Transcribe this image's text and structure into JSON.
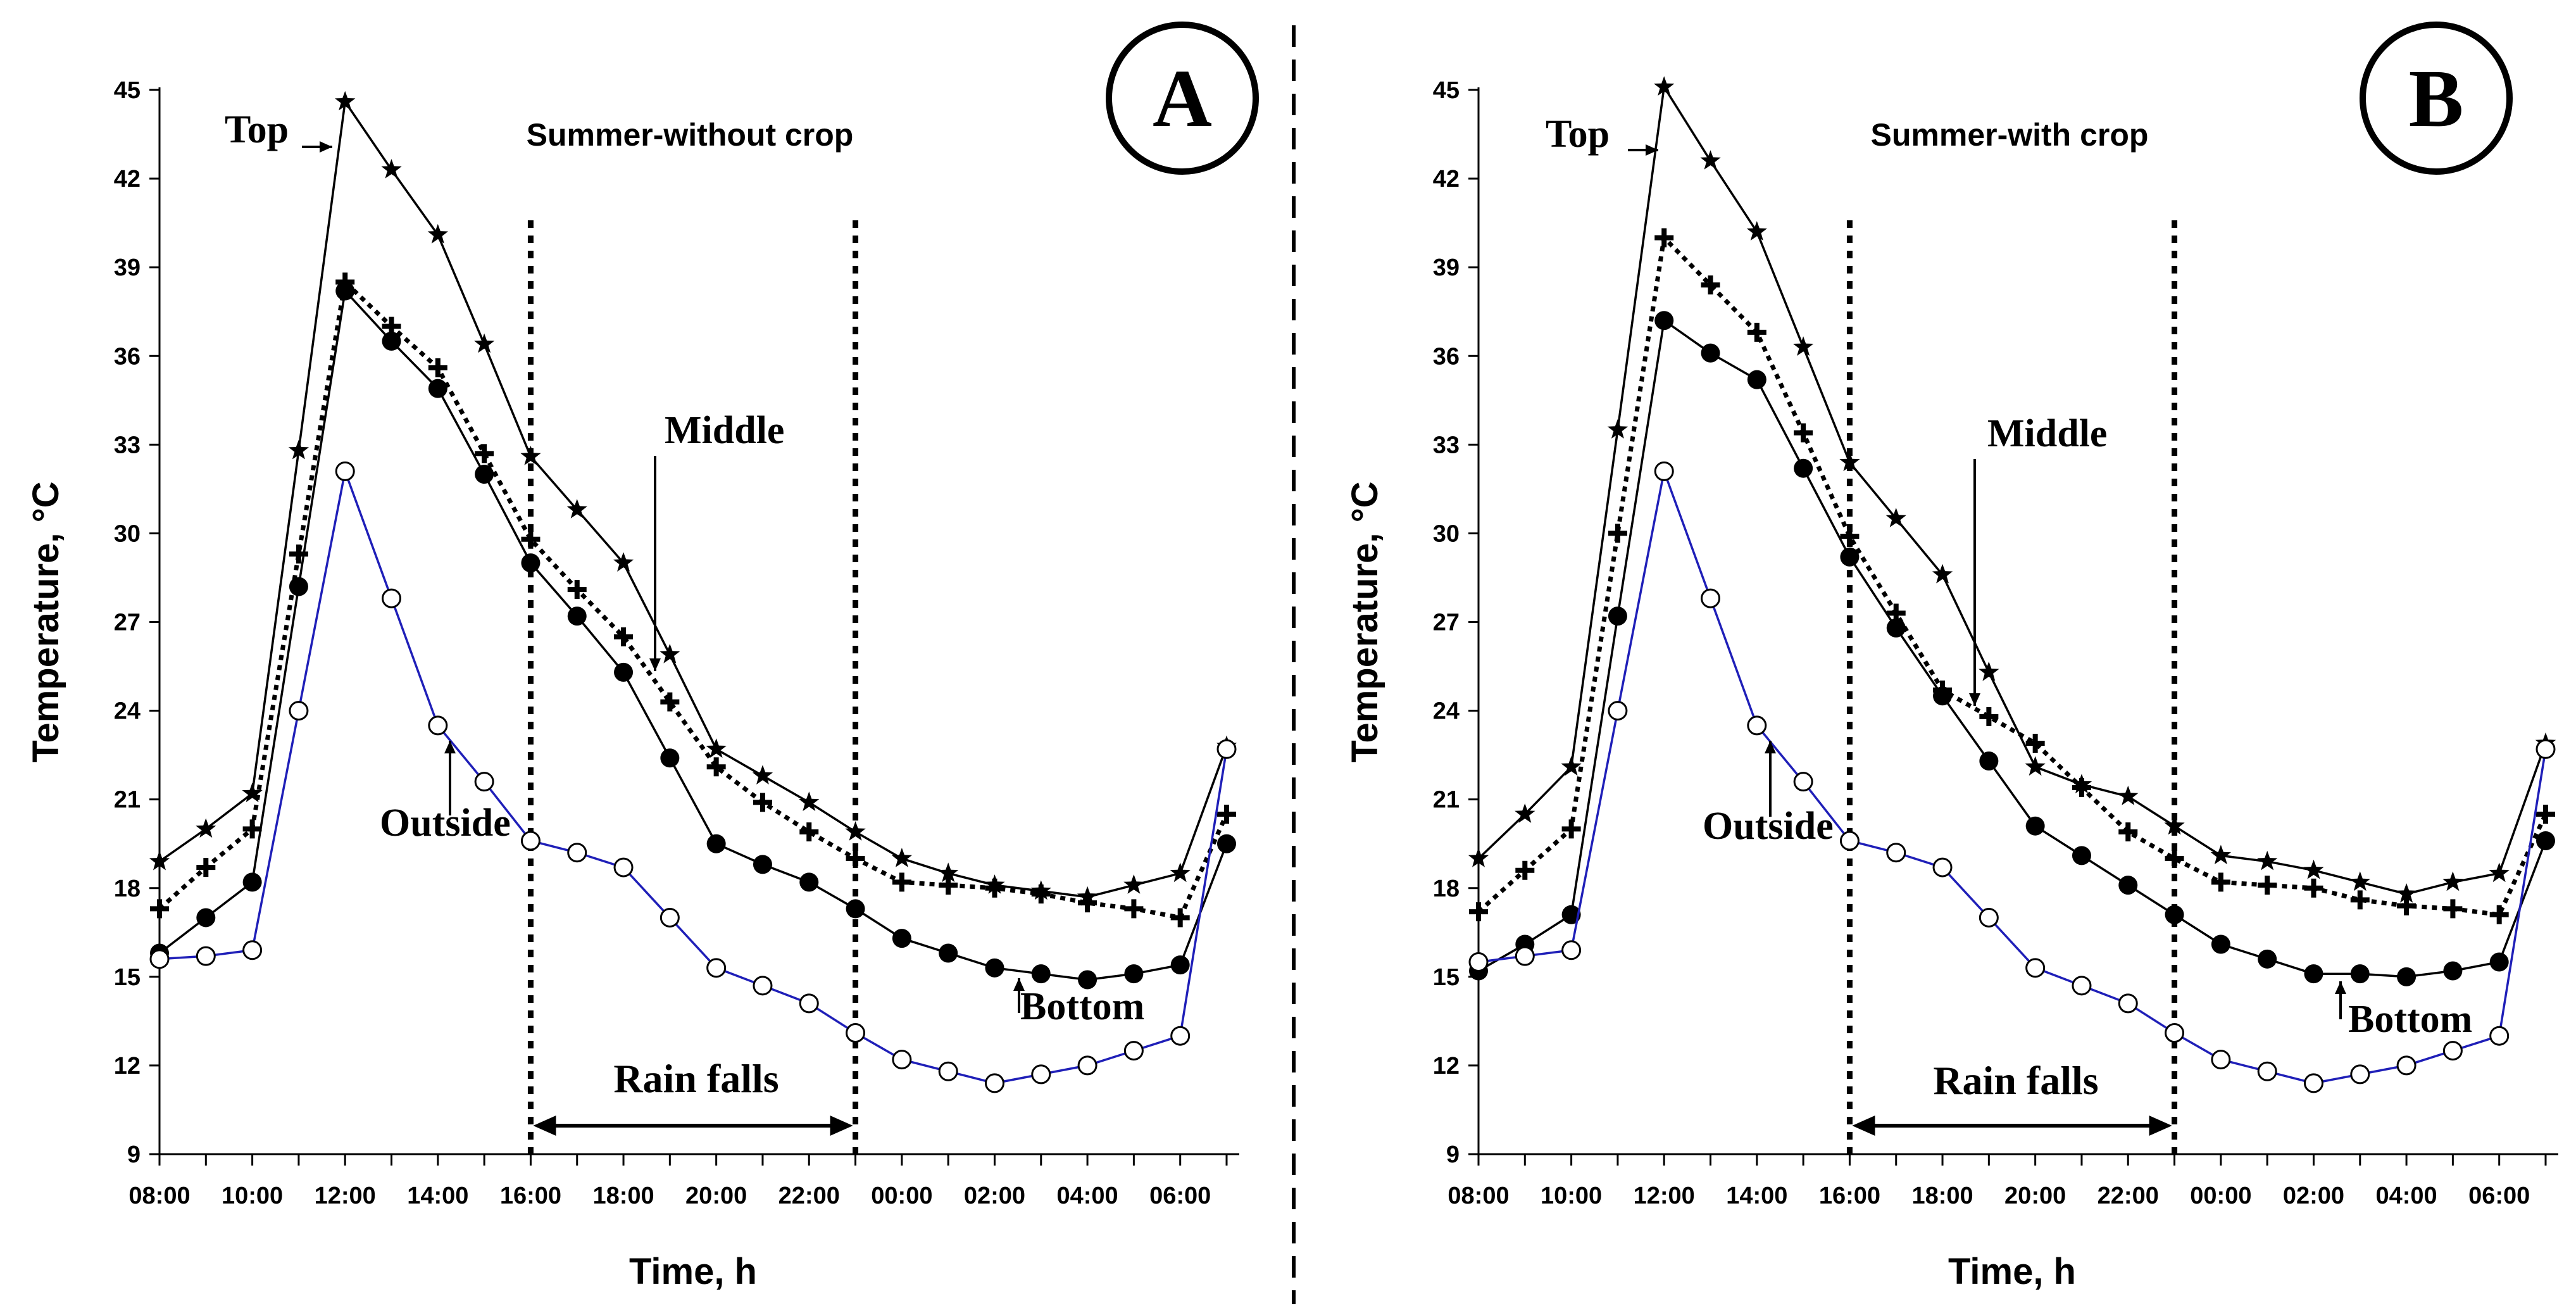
{
  "chart_data": [
    {
      "type": "line",
      "panel_label": "A",
      "title": "Summer-without crop",
      "xlabel": "Time, h",
      "ylabel": "Temperature, °C",
      "ylim": [
        9,
        45
      ],
      "yticks": [
        9,
        12,
        15,
        18,
        21,
        24,
        27,
        30,
        33,
        36,
        39,
        42,
        45
      ],
      "x_hours": [
        0,
        1,
        2,
        3,
        4,
        5,
        6,
        7,
        8,
        9,
        10,
        11,
        12,
        13,
        14,
        15,
        16,
        17,
        18,
        19,
        20,
        21,
        22,
        23
      ],
      "xtick_labels": [
        "08:00",
        "10:00",
        "12:00",
        "14:00",
        "16:00",
        "18:00",
        "20:00",
        "22:00",
        "00:00",
        "02:00",
        "04:00",
        "06:00"
      ],
      "rain_period": {
        "label": "Rain falls",
        "start": "16:00",
        "end": "23:00"
      },
      "series": [
        {
          "name": "Top",
          "color": "#000000",
          "marker": "star",
          "dash": false,
          "values": [
            18.9,
            20.0,
            21.2,
            32.8,
            44.6,
            42.3,
            40.1,
            36.4,
            32.6,
            30.8,
            29.0,
            25.9,
            22.7,
            21.8,
            20.9,
            19.9,
            19.0,
            18.5,
            18.1,
            17.9,
            17.7,
            18.1,
            18.5,
            22.8
          ]
        },
        {
          "name": "Middle",
          "color": "#000000",
          "marker": "plus",
          "dash": true,
          "values": [
            17.3,
            18.7,
            20.0,
            29.3,
            38.5,
            37.0,
            35.6,
            32.7,
            29.8,
            28.1,
            26.5,
            24.3,
            22.1,
            20.9,
            19.9,
            19.0,
            18.2,
            18.1,
            18.0,
            17.8,
            17.5,
            17.3,
            17.0,
            20.5
          ]
        },
        {
          "name": "Bottom",
          "color": "#000000",
          "marker": "filled-circle",
          "dash": false,
          "values": [
            15.8,
            17.0,
            18.2,
            28.2,
            38.2,
            36.5,
            34.9,
            32.0,
            29.0,
            27.2,
            25.3,
            22.4,
            19.5,
            18.8,
            18.2,
            17.3,
            16.3,
            15.8,
            15.3,
            15.1,
            14.9,
            15.1,
            15.4,
            19.5
          ]
        },
        {
          "name": "Outside",
          "color": "#1f1fb8",
          "marker": "open-circle",
          "dash": false,
          "values": [
            15.6,
            15.7,
            15.9,
            24.0,
            32.1,
            27.8,
            23.5,
            21.6,
            19.6,
            19.2,
            18.7,
            17.0,
            15.3,
            14.7,
            14.1,
            13.1,
            12.2,
            11.8,
            11.4,
            11.7,
            12.0,
            12.5,
            13.0,
            22.7
          ]
        }
      ]
    },
    {
      "type": "line",
      "panel_label": "B",
      "title": "Summer-with crop",
      "xlabel": "Time, h",
      "ylabel": "Temperature, °C",
      "ylim": [
        9,
        45
      ],
      "yticks": [
        9,
        12,
        15,
        18,
        21,
        24,
        27,
        30,
        33,
        36,
        39,
        42,
        45
      ],
      "x_hours": [
        0,
        1,
        2,
        3,
        4,
        5,
        6,
        7,
        8,
        9,
        10,
        11,
        12,
        13,
        14,
        15,
        16,
        17,
        18,
        19,
        20,
        21,
        22,
        23
      ],
      "xtick_labels": [
        "08:00",
        "10:00",
        "12:00",
        "14:00",
        "16:00",
        "18:00",
        "20:00",
        "22:00",
        "00:00",
        "02:00",
        "04:00",
        "06:00"
      ],
      "rain_period": {
        "label": "Rain falls",
        "start": "16:00",
        "end": "23:00"
      },
      "series": [
        {
          "name": "Top",
          "color": "#000000",
          "marker": "star",
          "dash": false,
          "values": [
            19.0,
            20.5,
            22.1,
            33.5,
            45.1,
            42.6,
            40.2,
            36.3,
            32.4,
            30.5,
            28.6,
            25.3,
            22.1,
            21.5,
            21.1,
            20.1,
            19.1,
            18.9,
            18.6,
            18.2,
            17.8,
            18.2,
            18.5,
            22.9
          ]
        },
        {
          "name": "Middle",
          "color": "#000000",
          "marker": "plus",
          "dash": true,
          "values": [
            17.2,
            18.6,
            20.0,
            30.0,
            40.0,
            38.4,
            36.8,
            33.4,
            29.9,
            27.3,
            24.7,
            23.8,
            22.9,
            21.4,
            19.9,
            19.0,
            18.2,
            18.1,
            18.0,
            17.6,
            17.4,
            17.3,
            17.1,
            20.5
          ]
        },
        {
          "name": "Bottom",
          "color": "#000000",
          "marker": "filled-circle",
          "dash": false,
          "values": [
            15.2,
            16.1,
            17.1,
            27.2,
            37.2,
            36.1,
            35.2,
            32.2,
            29.2,
            26.8,
            24.5,
            22.3,
            20.1,
            19.1,
            18.1,
            17.1,
            16.1,
            15.6,
            15.1,
            15.1,
            15.0,
            15.2,
            15.5,
            19.6
          ]
        },
        {
          "name": "Outside",
          "color": "#1f1fb8",
          "marker": "open-circle",
          "dash": false,
          "values": [
            15.5,
            15.7,
            15.9,
            24.0,
            32.1,
            27.8,
            23.5,
            21.6,
            19.6,
            19.2,
            18.7,
            17.0,
            15.3,
            14.7,
            14.1,
            13.1,
            12.2,
            11.8,
            11.4,
            11.7,
            12.0,
            12.5,
            13.0,
            22.7
          ]
        }
      ]
    }
  ]
}
